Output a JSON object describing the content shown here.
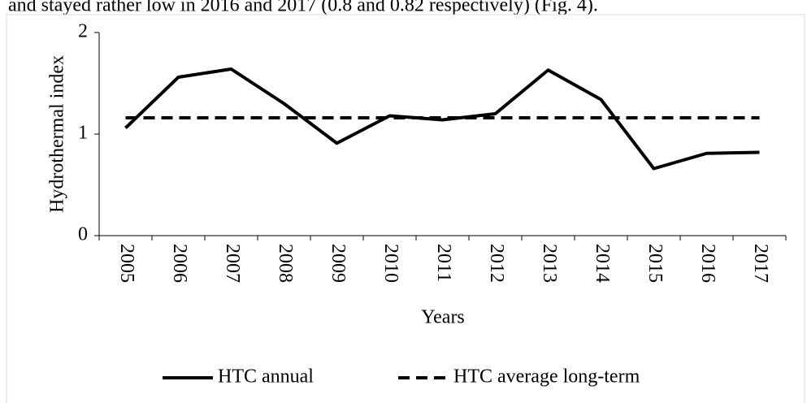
{
  "caption_text": "and stayed rather low in 2016 and 2017 (0.8 and 0.82 respectively) (Fig. 4).",
  "chart_data": {
    "type": "line",
    "y_label": "Hydrothermal index",
    "x_label": "Years",
    "categories": [
      "2005",
      "2006",
      "2007",
      "2008",
      "2009",
      "2010",
      "2011",
      "2012",
      "2013",
      "2014",
      "2015",
      "2016",
      "2017"
    ],
    "series": [
      {
        "name": "HTC annual",
        "color": "#000000",
        "dash": "solid",
        "values": [
          1.06,
          1.56,
          1.64,
          1.3,
          0.91,
          1.18,
          1.14,
          1.2,
          1.63,
          1.34,
          0.66,
          0.81,
          0.82
        ]
      },
      {
        "name": "HTC average long-term",
        "color": "#000000",
        "dash": "dashed",
        "values": [
          1.16,
          1.16,
          1.16,
          1.16,
          1.16,
          1.16,
          1.16,
          1.16,
          1.16,
          1.16,
          1.16,
          1.16,
          1.16
        ]
      }
    ],
    "ylim": [
      0,
      2
    ],
    "yticks": [
      0,
      1,
      2
    ],
    "grid": false,
    "legend": "bottom"
  }
}
